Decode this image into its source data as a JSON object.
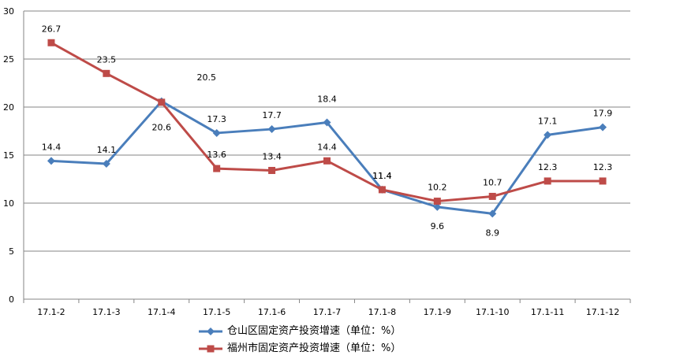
{
  "chart_data": {
    "type": "line",
    "categories": [
      "17.1-2",
      "17.1-3",
      "17.1-4",
      "17.1-5",
      "17.1-6",
      "17.1-7",
      "17.1-8",
      "17.1-9",
      "17.1-10",
      "17.1-11",
      "17.1-12"
    ],
    "ylim": [
      0,
      30
    ],
    "yticks": [
      0,
      5,
      10,
      15,
      20,
      25,
      30
    ],
    "grid": true,
    "legend_position": "bottom",
    "series": [
      {
        "name": "仓山区固定资产投资增速（单位：%）",
        "color": "#4a7ebb",
        "marker": "diamond",
        "values": [
          14.4,
          14.1,
          20.6,
          17.3,
          17.7,
          18.4,
          11.4,
          9.6,
          8.9,
          17.1,
          17.9
        ],
        "labels": [
          "14.4",
          "14.1",
          "20.6",
          "17.3",
          "17.7",
          "18.4",
          "11.4",
          "9.6",
          "8.9",
          "17.1",
          "17.9"
        ]
      },
      {
        "name": "福州市固定资产投资增速（单位：%）",
        "color": "#be4b48",
        "marker": "square",
        "values": [
          26.7,
          23.5,
          20.5,
          13.6,
          13.4,
          14.4,
          11.4,
          10.2,
          10.7,
          12.3,
          12.3
        ],
        "labels": [
          "26.7",
          "23.5",
          "20.5",
          "13.6",
          "13.4",
          "14.4",
          "11.4",
          "10.2",
          "10.7",
          "12.3",
          "12.3"
        ]
      }
    ]
  }
}
